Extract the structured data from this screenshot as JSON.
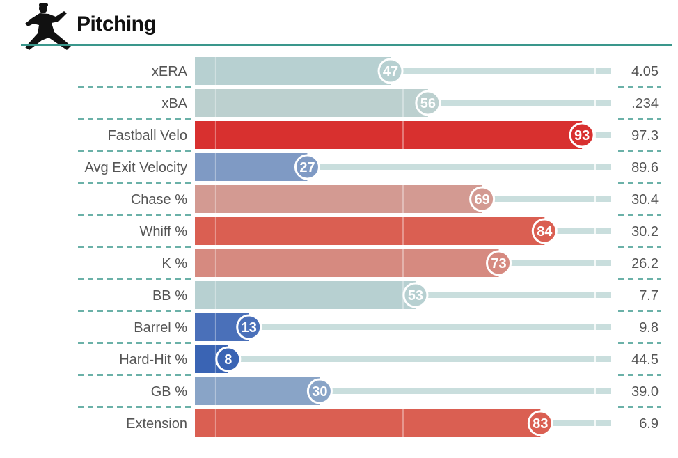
{
  "header": {
    "title": "Pitching",
    "icon": "pitcher-silhouette-icon"
  },
  "chart_data": {
    "type": "bar",
    "orientation": "horizontal",
    "scale": [
      0,
      100
    ],
    "categories": [
      "xERA",
      "xBA",
      "Fastball Velo",
      "Avg Exit Velocity",
      "Chase %",
      "Whiff %",
      "K %",
      "BB %",
      "Barrel %",
      "Hard-Hit %",
      "GB %",
      "Extension"
    ],
    "percentiles": [
      47,
      56,
      93,
      27,
      69,
      84,
      73,
      53,
      13,
      8,
      30,
      83
    ],
    "values": [
      "4.05",
      ".234",
      "97.3",
      "89.6",
      "30.4",
      "30.2",
      "26.2",
      "7.7",
      "9.8",
      "44.5",
      "39.0",
      "6.9"
    ],
    "colors": [
      "#b7d0d1",
      "#bcd0cf",
      "#d8302f",
      "#7f9ac4",
      "#d39a92",
      "#da5f52",
      "#d68a80",
      "#b7d0d1",
      "#4a70b9",
      "#3a64b4",
      "#89a4c7",
      "#da5f52"
    ],
    "track_color": "#c9dedd",
    "divider_color": "#3a978c"
  }
}
